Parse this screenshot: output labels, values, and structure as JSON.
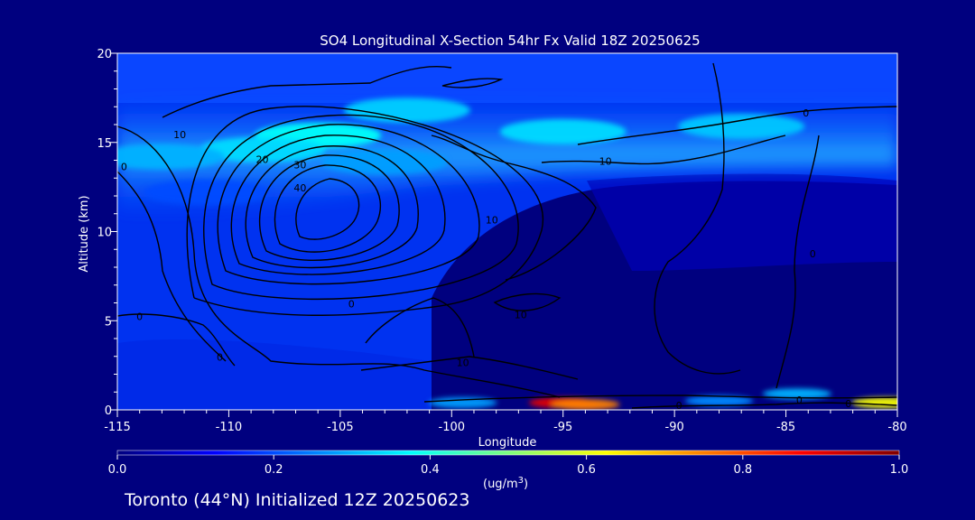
{
  "chart_data": {
    "type": "heatmap",
    "title": "SO4 Longitudinal X-Section 54hr  Fx Valid 18Z 20250625",
    "xlabel": "Longitude",
    "ylabel": "Altitude (km)",
    "xlim": [
      -115,
      -80
    ],
    "ylim": [
      0,
      20
    ],
    "x_ticks": [
      -115,
      -110,
      -105,
      -100,
      -95,
      -90,
      -85,
      -80
    ],
    "x_tick_labels": [
      "-115",
      "-110",
      "-105",
      "-100",
      "-95",
      "-90",
      "-85",
      "-80"
    ],
    "y_ticks": [
      0,
      5,
      10,
      15,
      20
    ],
    "y_tick_labels": [
      "0",
      "5",
      "10",
      "15",
      "20"
    ],
    "colorbar": {
      "min": 0.0,
      "max": 1.0,
      "ticks": [
        0.0,
        0.2,
        0.4,
        0.6,
        0.8,
        1.0
      ],
      "tick_labels": [
        "0.0",
        "0.2",
        "0.4",
        "0.6",
        "0.8",
        "1.0"
      ],
      "units_label": "(ug/m",
      "units_superscript": "3",
      "units_close": ")",
      "colormap": [
        "#00007f",
        "#0000ff",
        "#007fff",
        "#00ffff",
        "#7fff7f",
        "#ffff00",
        "#ff7f00",
        "#ff0000",
        "#7f0000"
      ]
    },
    "contour_labels": [
      {
        "text": "10",
        "lon": -112.2,
        "alt": 15.4
      },
      {
        "text": "0",
        "lon": -114.7,
        "alt": 13.6
      },
      {
        "text": "20",
        "lon": -108.5,
        "alt": 14.0
      },
      {
        "text": "30",
        "lon": -106.8,
        "alt": 13.7
      },
      {
        "text": "40",
        "lon": -106.8,
        "alt": 12.4
      },
      {
        "text": "10",
        "lon": -98.2,
        "alt": 10.6
      },
      {
        "text": "10",
        "lon": -93.1,
        "alt": 13.9
      },
      {
        "text": "0",
        "lon": -84.1,
        "alt": 16.6
      },
      {
        "text": "0",
        "lon": -104.5,
        "alt": 5.9
      },
      {
        "text": "0",
        "lon": -114.0,
        "alt": 5.2
      },
      {
        "text": "10",
        "lon": -96.9,
        "alt": 5.3
      },
      {
        "text": "10",
        "lon": -99.5,
        "alt": 2.6
      },
      {
        "text": "0",
        "lon": -83.8,
        "alt": 8.7
      },
      {
        "text": "0",
        "lon": -89.8,
        "alt": 0.2
      },
      {
        "text": "0",
        "lon": -84.4,
        "alt": 0.5
      },
      {
        "text": "0",
        "lon": -82.2,
        "alt": 0.3
      },
      {
        "text": "0",
        "lon": -110.4,
        "alt": 2.9
      }
    ],
    "concentration_features": [
      {
        "lon": -102,
        "alt": 16.8,
        "value": 0.33
      },
      {
        "lon": -106,
        "alt": 15.4,
        "value": 0.38
      },
      {
        "lon": -95,
        "alt": 15.6,
        "value": 0.34
      },
      {
        "lon": -87,
        "alt": 15.9,
        "value": 0.32
      },
      {
        "lon": -108.5,
        "alt": 14.6,
        "value": 0.34
      },
      {
        "lon": -113,
        "alt": 14.2,
        "value": 0.3
      },
      {
        "lon": -103,
        "alt": 13.9,
        "value": 0.28
      },
      {
        "lon": -111,
        "alt": 12.2,
        "value": 0.2
      },
      {
        "lon": -95,
        "alt": 0.4,
        "value": 0.9
      },
      {
        "lon": -94,
        "alt": 0.3,
        "value": 0.75
      },
      {
        "lon": -80.5,
        "alt": 0.4,
        "value": 0.62
      },
      {
        "lon": -84.5,
        "alt": 0.9,
        "value": 0.3
      },
      {
        "lon": -99.5,
        "alt": 0.4,
        "value": 0.28
      },
      {
        "lon": -88,
        "alt": 0.5,
        "value": 0.26
      }
    ]
  },
  "footer": "Toronto (44°N) Initialized 12Z 20250623"
}
